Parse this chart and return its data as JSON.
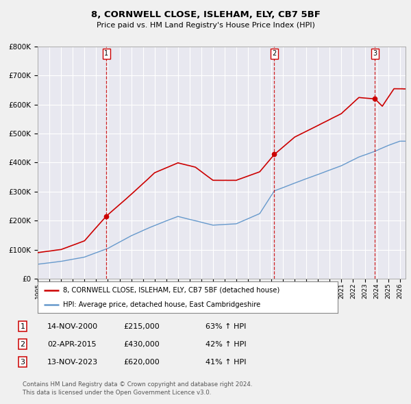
{
  "title": "8, CORNWELL CLOSE, ISLEHAM, ELY, CB7 5BF",
  "subtitle": "Price paid vs. HM Land Registry's House Price Index (HPI)",
  "background_color": "#f0f0f0",
  "plot_bg_color": "#e8e8f0",
  "grid_color": "#ffffff",
  "red_line_color": "#cc0000",
  "blue_line_color": "#6699cc",
  "sale_line_color": "#cc0000",
  "ylim": [
    0,
    800000
  ],
  "xlim_start": 1995.0,
  "xlim_end": 2026.5,
  "hpi_anchors_x": [
    1995.0,
    1997.0,
    1999.0,
    2001.0,
    2003.0,
    2004.5,
    2007.0,
    2009.0,
    2010.0,
    2012.0,
    2014.0,
    2015.25,
    2017.0,
    2019.0,
    2021.0,
    2022.5,
    2023.87,
    2025.0,
    2026.0
  ],
  "hpi_anchors_y": [
    50000,
    60000,
    75000,
    105000,
    148000,
    175000,
    215000,
    195000,
    185000,
    190000,
    225000,
    303000,
    330000,
    360000,
    390000,
    420000,
    440000,
    460000,
    475000
  ],
  "prop_anchors_x": [
    1995.0,
    1997.0,
    1999.0,
    2000.87,
    2003.0,
    2005.0,
    2007.0,
    2008.5,
    2010.0,
    2012.0,
    2014.0,
    2015.25,
    2017.0,
    2019.0,
    2021.0,
    2022.5,
    2023.87,
    2024.5,
    2025.5
  ],
  "prop_anchors_y": [
    90000,
    100000,
    130000,
    215000,
    290000,
    365000,
    400000,
    385000,
    340000,
    340000,
    370000,
    430000,
    490000,
    530000,
    570000,
    625000,
    620000,
    595000,
    655000
  ],
  "sales": [
    {
      "year": 2000.87,
      "price": 215000,
      "label": "1",
      "date": "14-NOV-2000",
      "pct": "63% ↑ HPI"
    },
    {
      "year": 2015.25,
      "price": 430000,
      "label": "2",
      "date": "02-APR-2015",
      "pct": "42% ↑ HPI"
    },
    {
      "year": 2023.87,
      "price": 620000,
      "label": "3",
      "date": "13-NOV-2023",
      "pct": "41% ↑ HPI"
    }
  ],
  "legend_line1": "8, CORNWELL CLOSE, ISLEHAM, ELY, CB7 5BF (detached house)",
  "legend_line2": "HPI: Average price, detached house, East Cambridgeshire",
  "footer1": "Contains HM Land Registry data © Crown copyright and database right 2024.",
  "footer2": "This data is licensed under the Open Government Licence v3.0.",
  "table_rows": [
    [
      "1",
      "14-NOV-2000",
      "£215,000",
      "63% ↑ HPI"
    ],
    [
      "2",
      "02-APR-2015",
      "£430,000",
      "42% ↑ HPI"
    ],
    [
      "3",
      "13-NOV-2023",
      "£620,000",
      "41% ↑ HPI"
    ]
  ]
}
